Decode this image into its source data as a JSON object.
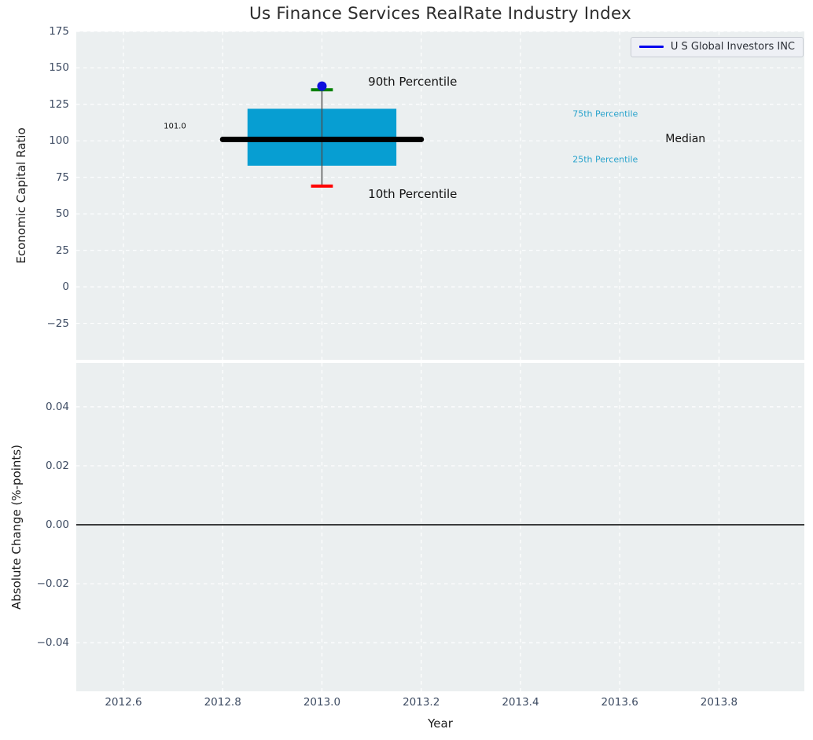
{
  "title": "Us Finance Services RealRate Industry Index",
  "legend": {
    "label": "U S Global Investors INC",
    "line_color": "#0000ee"
  },
  "theme": {
    "plot_bg": "#ebeff0",
    "grid_color": "#ffffff",
    "tick_color": "#3e4c63",
    "label_color": "#1c1c1c",
    "title_color": "#2d2d2d"
  },
  "chart_data": [
    {
      "type": "box",
      "ylabel": "Economic Capital Ratio",
      "ylim": [
        -50,
        175
      ],
      "xlim": [
        2012.505,
        2013.972
      ],
      "grid": true,
      "ytick_values": [
        175,
        150,
        125,
        100,
        75,
        50,
        25,
        0,
        -25
      ],
      "ytick_labels": [
        "175",
        "150",
        "125",
        "100",
        "75",
        "50",
        "25",
        "0",
        "−25"
      ],
      "xtick_values": [
        2012.6,
        2012.8,
        2013.0,
        2013.2,
        2013.4,
        2013.6,
        2013.8
      ],
      "series": {
        "name": "industry-distribution",
        "x": 2013.0,
        "p10": 69,
        "p25": 83,
        "median": 101,
        "p75": 122,
        "p90": 135,
        "company_value": 137.5,
        "box_halfwidth": 0.15,
        "median_halfwidth": 0.2,
        "cap_halfwidth": 0.022
      },
      "colors": {
        "box_fill": "#079ed2",
        "median_line": "#000000",
        "whisker": "#4d4d4d",
        "cap_top": "#008000",
        "cap_bottom": "#ff0000",
        "company_dot": "#0f0fdd"
      },
      "annotations": [
        {
          "name": "median-value-label",
          "text": "101.0",
          "x": 2012.681,
          "y": 110.0,
          "color": "#111111",
          "size": 10
        },
        {
          "name": "annotation-90th-percentile",
          "text": "90th Percentile",
          "x": 2013.093,
          "y": 140.5,
          "color": "#141414",
          "size": 15
        },
        {
          "name": "annotation-10th-percentile",
          "text": "10th Percentile",
          "x": 2013.093,
          "y": 63.5,
          "color": "#141414",
          "size": 15
        },
        {
          "name": "annotation-75th-percentile",
          "text": "75th Percentile",
          "x": 2013.505,
          "y": 118.5,
          "color": "#29a3cc",
          "size": 11
        },
        {
          "name": "annotation-25th-percentile",
          "text": "25th Percentile",
          "x": 2013.505,
          "y": 87.3,
          "color": "#29a3cc",
          "size": 11
        },
        {
          "name": "annotation-median",
          "text": "Median",
          "x": 2013.692,
          "y": 101.0,
          "color": "#111111",
          "size": 14
        }
      ]
    },
    {
      "type": "line",
      "ylabel": "Absolute Change (%-points)",
      "xlabel": "Year",
      "ylim": [
        -0.0565,
        0.0549
      ],
      "xlim": [
        2012.505,
        2013.972
      ],
      "grid": true,
      "ytick_values": [
        0.04,
        0.02,
        0.0,
        -0.02,
        -0.04
      ],
      "ytick_labels": [
        "0.04",
        "0.02",
        "0.00",
        "−0.02",
        "−0.04"
      ],
      "xtick_values": [
        2012.6,
        2012.8,
        2013.0,
        2013.2,
        2013.4,
        2013.6,
        2013.8
      ],
      "xtick_labels": [
        "2012.6",
        "2012.8",
        "2013.0",
        "2013.2",
        "2013.4",
        "2013.6",
        "2013.8"
      ],
      "zero_line": 0.0,
      "series": []
    }
  ]
}
